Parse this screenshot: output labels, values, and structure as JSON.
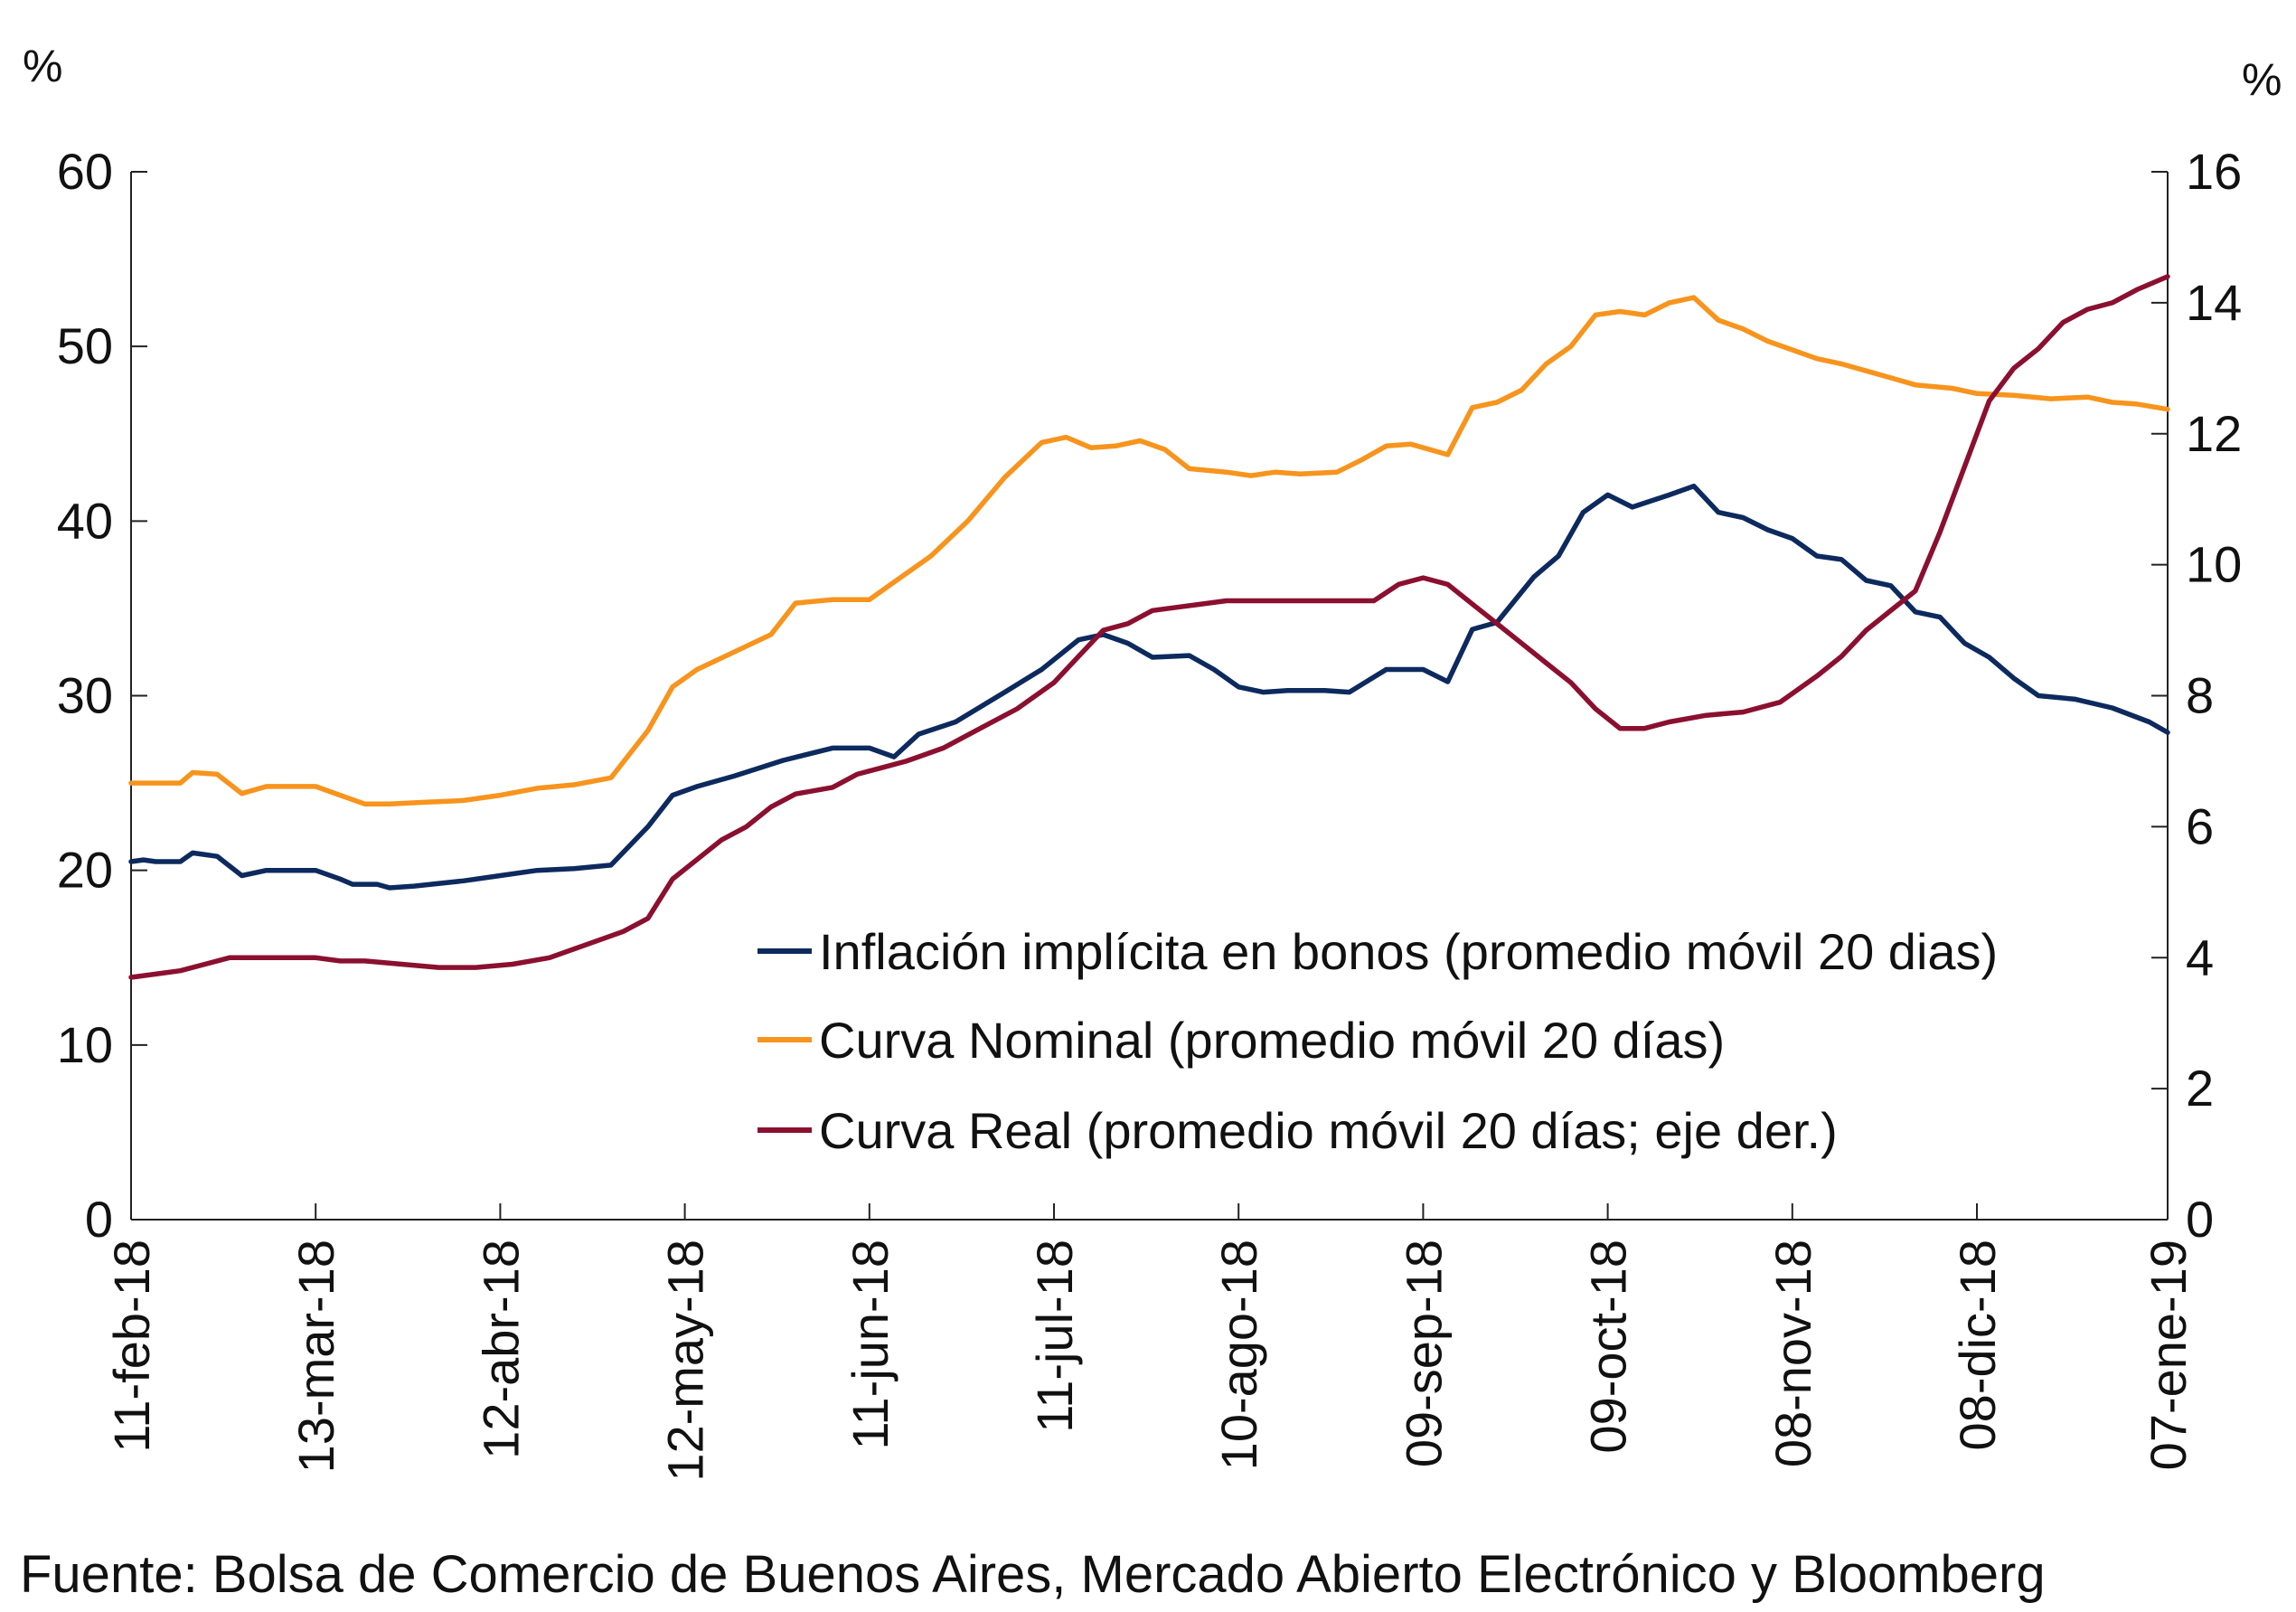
{
  "chart_data": {
    "type": "line",
    "title": "",
    "left_axis": {
      "unit": "%",
      "ylim": [
        0,
        60
      ],
      "ticks": [
        "0",
        "10",
        "20",
        "30",
        "40",
        "50",
        "60"
      ]
    },
    "right_axis": {
      "unit": "%",
      "ylim": [
        0,
        16
      ],
      "ticks": [
        "0",
        "2",
        "4",
        "6",
        "8",
        "10",
        "12",
        "14",
        "16"
      ]
    },
    "x_ticks": [
      "11-feb-18",
      "13-mar-18",
      "12-abr-18",
      "12-may-18",
      "11-jun-18",
      "11-jul-18",
      "10-ago-18",
      "09-sep-18",
      "09-oct-18",
      "08-nov-18",
      "08-dic-18",
      "07-ene-19"
    ],
    "x_range_days": [
      0,
      331
    ],
    "legend_position": "center-right",
    "series": [
      {
        "name": "Inflación implícita en bonos (promedio móvil 20 dias)",
        "color": "#0d2a5e",
        "axis": "left",
        "points": [
          [
            0,
            20.5
          ],
          [
            2,
            20.6
          ],
          [
            4,
            20.5
          ],
          [
            8,
            20.5
          ],
          [
            10,
            21
          ],
          [
            14,
            20.8
          ],
          [
            18,
            19.7
          ],
          [
            22,
            20
          ],
          [
            30,
            20
          ],
          [
            34,
            19.5
          ],
          [
            36,
            19.2
          ],
          [
            40,
            19.2
          ],
          [
            42,
            19.0
          ],
          [
            46,
            19.1
          ],
          [
            54,
            19.4
          ],
          [
            60,
            19.7
          ],
          [
            66,
            20
          ],
          [
            72,
            20.1
          ],
          [
            78,
            20.3
          ],
          [
            84,
            22.5
          ],
          [
            88,
            24.3
          ],
          [
            92,
            24.8
          ],
          [
            98,
            25.4
          ],
          [
            106,
            26.3
          ],
          [
            114,
            27
          ],
          [
            120,
            27
          ],
          [
            124,
            26.5
          ],
          [
            128,
            27.8
          ],
          [
            134,
            28.5
          ],
          [
            142,
            30.2
          ],
          [
            148,
            31.5
          ],
          [
            154,
            33.2
          ],
          [
            158,
            33.5
          ],
          [
            162,
            33
          ],
          [
            166,
            32.2
          ],
          [
            172,
            32.3
          ],
          [
            176,
            31.5
          ],
          [
            180,
            30.5
          ],
          [
            184,
            30.2
          ],
          [
            188,
            30.3
          ],
          [
            194,
            30.3
          ],
          [
            198,
            30.2
          ],
          [
            204,
            31.5
          ],
          [
            210,
            31.5
          ],
          [
            214,
            30.8
          ],
          [
            218,
            33.8
          ],
          [
            222,
            34.2
          ],
          [
            228,
            36.8
          ],
          [
            232,
            38
          ],
          [
            236,
            40.5
          ],
          [
            240,
            41.5
          ],
          [
            244,
            40.8
          ],
          [
            250,
            41.5
          ],
          [
            254,
            42
          ],
          [
            258,
            40.5
          ],
          [
            262,
            40.2
          ],
          [
            266,
            39.5
          ],
          [
            270,
            39
          ],
          [
            274,
            38
          ],
          [
            278,
            37.8
          ],
          [
            282,
            36.6
          ],
          [
            286,
            36.3
          ],
          [
            290,
            34.8
          ],
          [
            294,
            34.5
          ],
          [
            298,
            33
          ],
          [
            302,
            32.2
          ],
          [
            306,
            31
          ],
          [
            310,
            30
          ],
          [
            316,
            29.8
          ],
          [
            322,
            29.3
          ],
          [
            328,
            28.5
          ],
          [
            331,
            27.9
          ]
        ]
      },
      {
        "name": "Curva Nominal (promedio móvil 20 días)",
        "color": "#f7941d",
        "axis": "left",
        "points": [
          [
            0,
            25
          ],
          [
            4,
            25
          ],
          [
            8,
            25
          ],
          [
            10,
            25.6
          ],
          [
            14,
            25.5
          ],
          [
            18,
            24.4
          ],
          [
            22,
            24.8
          ],
          [
            30,
            24.8
          ],
          [
            34,
            24.3
          ],
          [
            38,
            23.8
          ],
          [
            42,
            23.8
          ],
          [
            48,
            23.9
          ],
          [
            54,
            24
          ],
          [
            60,
            24.3
          ],
          [
            66,
            24.7
          ],
          [
            72,
            24.9
          ],
          [
            78,
            25.3
          ],
          [
            84,
            28
          ],
          [
            88,
            30.5
          ],
          [
            92,
            31.5
          ],
          [
            98,
            32.5
          ],
          [
            104,
            33.5
          ],
          [
            108,
            35.3
          ],
          [
            114,
            35.5
          ],
          [
            120,
            35.5
          ],
          [
            124,
            36.5
          ],
          [
            130,
            38
          ],
          [
            136,
            40
          ],
          [
            142,
            42.5
          ],
          [
            148,
            44.5
          ],
          [
            152,
            44.8
          ],
          [
            156,
            44.2
          ],
          [
            160,
            44.3
          ],
          [
            164,
            44.6
          ],
          [
            168,
            44.1
          ],
          [
            172,
            43
          ],
          [
            178,
            42.8
          ],
          [
            182,
            42.6
          ],
          [
            186,
            42.8
          ],
          [
            190,
            42.7
          ],
          [
            196,
            42.8
          ],
          [
            200,
            43.5
          ],
          [
            204,
            44.3
          ],
          [
            208,
            44.4
          ],
          [
            214,
            43.8
          ],
          [
            218,
            46.5
          ],
          [
            222,
            46.8
          ],
          [
            226,
            47.5
          ],
          [
            230,
            49
          ],
          [
            234,
            50
          ],
          [
            238,
            51.8
          ],
          [
            242,
            52
          ],
          [
            246,
            51.8
          ],
          [
            250,
            52.5
          ],
          [
            254,
            52.8
          ],
          [
            258,
            51.5
          ],
          [
            262,
            51
          ],
          [
            266,
            50.3
          ],
          [
            270,
            49.8
          ],
          [
            274,
            49.3
          ],
          [
            278,
            49
          ],
          [
            282,
            48.6
          ],
          [
            286,
            48.2
          ],
          [
            290,
            47.8
          ],
          [
            296,
            47.6
          ],
          [
            300,
            47.3
          ],
          [
            306,
            47.2
          ],
          [
            312,
            47
          ],
          [
            318,
            47.1
          ],
          [
            322,
            46.8
          ],
          [
            326,
            46.7
          ],
          [
            331,
            46.4
          ]
        ]
      },
      {
        "name": "Curva Real (promedio móvil 20 días; eje der.)",
        "color": "#8b1030",
        "axis": "right",
        "points": [
          [
            0,
            3.7
          ],
          [
            4,
            3.75
          ],
          [
            8,
            3.8
          ],
          [
            12,
            3.9
          ],
          [
            16,
            4.0
          ],
          [
            20,
            4.0
          ],
          [
            24,
            4.0
          ],
          [
            30,
            4.0
          ],
          [
            34,
            3.95
          ],
          [
            38,
            3.95
          ],
          [
            44,
            3.9
          ],
          [
            50,
            3.85
          ],
          [
            56,
            3.85
          ],
          [
            62,
            3.9
          ],
          [
            68,
            4.0
          ],
          [
            74,
            4.2
          ],
          [
            80,
            4.4
          ],
          [
            84,
            4.6
          ],
          [
            88,
            5.2
          ],
          [
            92,
            5.5
          ],
          [
            96,
            5.8
          ],
          [
            100,
            6.0
          ],
          [
            104,
            6.3
          ],
          [
            108,
            6.5
          ],
          [
            114,
            6.6
          ],
          [
            118,
            6.8
          ],
          [
            122,
            6.9
          ],
          [
            126,
            7.0
          ],
          [
            132,
            7.2
          ],
          [
            138,
            7.5
          ],
          [
            144,
            7.8
          ],
          [
            150,
            8.2
          ],
          [
            154,
            8.6
          ],
          [
            158,
            9.0
          ],
          [
            162,
            9.1
          ],
          [
            166,
            9.3
          ],
          [
            170,
            9.35
          ],
          [
            174,
            9.4
          ],
          [
            178,
            9.45
          ],
          [
            184,
            9.45
          ],
          [
            190,
            9.45
          ],
          [
            196,
            9.45
          ],
          [
            202,
            9.45
          ],
          [
            206,
            9.7
          ],
          [
            210,
            9.8
          ],
          [
            214,
            9.7
          ],
          [
            218,
            9.4
          ],
          [
            222,
            9.1
          ],
          [
            226,
            8.8
          ],
          [
            230,
            8.5
          ],
          [
            234,
            8.2
          ],
          [
            238,
            7.8
          ],
          [
            242,
            7.5
          ],
          [
            246,
            7.5
          ],
          [
            250,
            7.6
          ],
          [
            256,
            7.7
          ],
          [
            262,
            7.75
          ],
          [
            268,
            7.9
          ],
          [
            274,
            8.3
          ],
          [
            278,
            8.6
          ],
          [
            282,
            9.0
          ],
          [
            286,
            9.3
          ],
          [
            290,
            9.6
          ],
          [
            294,
            10.5
          ],
          [
            298,
            11.5
          ],
          [
            302,
            12.5
          ],
          [
            306,
            13
          ],
          [
            310,
            13.3
          ],
          [
            314,
            13.7
          ],
          [
            318,
            13.9
          ],
          [
            322,
            14.0
          ],
          [
            326,
            14.2
          ],
          [
            331,
            14.4
          ]
        ]
      }
    ]
  },
  "source_text": "Fuente: Bolsa de Comercio de Buenos Aires, Mercado Abierto Electrónico y Bloomberg"
}
